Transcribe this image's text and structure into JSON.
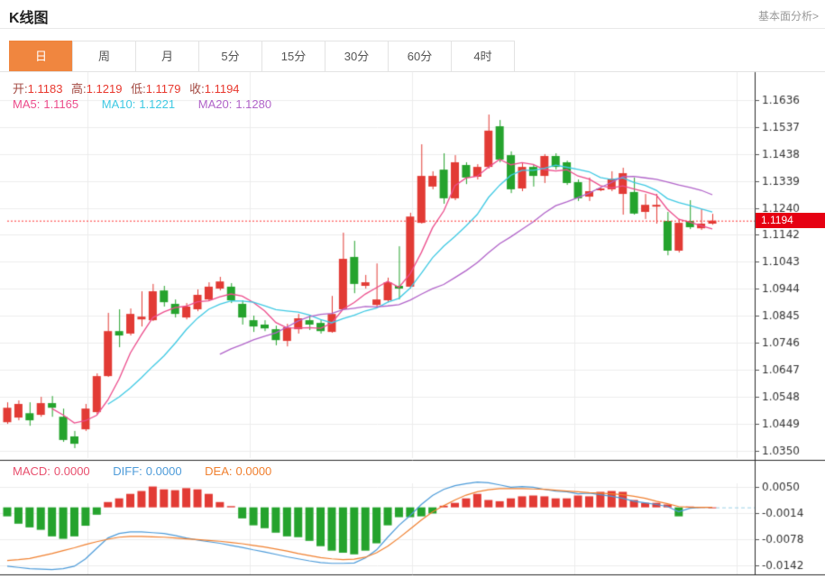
{
  "header": {
    "title": "K线图",
    "link_label": "基本面分析>"
  },
  "tabs": {
    "items": [
      "日",
      "周",
      "月",
      "5分",
      "15分",
      "30分",
      "60分",
      "4时"
    ],
    "active": "日"
  },
  "info_bar": {
    "open_label": "开:",
    "open": "1.1183",
    "high_label": "高:",
    "high": "1.1219",
    "low_label": "低:",
    "low": "1.1179",
    "close_label": "收:",
    "close": "1.1194",
    "ma5_label": "MA5:",
    "ma5": "1.1165",
    "ma10_label": "MA10:",
    "ma10": "1.1221",
    "ma20_label": "MA20:",
    "ma20": "1.1280"
  },
  "macd_bar": {
    "macd_label": "MACD:",
    "macd": "0.0000",
    "diff_label": "DIFF:",
    "diff": "0.0000",
    "dea_label": "DEA:",
    "dea": "0.0000"
  },
  "colors": {
    "up": "#e23b35",
    "down": "#25a32d",
    "ma5": "#ec4d8c",
    "ma10": "#3fc9e3",
    "ma20": "#b164c9",
    "diff": "#4d9bd9",
    "dea": "#f08030",
    "macd_label": "#e8506e",
    "ohlc_label": "#a34a42",
    "ohlc_value": "#e8392f",
    "price_line": "#ff3333",
    "badge_bg": "#e60012",
    "tab_active": "#f0863f",
    "grid": "#ececec",
    "axis": "#333333",
    "tick_text": "#333333",
    "zero_dash": "#9fd2e8"
  },
  "chart_data": {
    "type": "candlestick",
    "title": "K线图",
    "y_axis_ticks": [
      1.1636,
      1.1537,
      1.1438,
      1.1339,
      1.124,
      1.1142,
      1.1043,
      1.0944,
      1.0845,
      1.0746,
      1.0647,
      1.0548,
      1.0449,
      1.035
    ],
    "price_line": 1.1194,
    "price_badge": "1.1194",
    "ma_periods": [
      5,
      10,
      20
    ],
    "candles": [
      [
        1.0455,
        1.0528,
        1.0449,
        1.0508
      ],
      [
        1.0472,
        1.0535,
        1.0462,
        1.0522
      ],
      [
        1.0488,
        1.0528,
        1.0442,
        1.0462
      ],
      [
        1.0482,
        1.0548,
        1.0475,
        1.0525
      ],
      [
        1.0525,
        1.0551,
        1.0475,
        1.0508
      ],
      [
        1.0475,
        1.0505,
        1.0383,
        1.039
      ],
      [
        1.0403,
        1.0423,
        1.036,
        1.0376
      ],
      [
        1.0429,
        1.0522,
        1.0423,
        1.0505
      ],
      [
        1.0492,
        1.0634,
        1.0485,
        1.0624
      ],
      [
        1.0624,
        1.0856,
        1.0621,
        1.0789
      ],
      [
        1.0789,
        1.0869,
        1.073,
        1.0773
      ],
      [
        1.078,
        1.0872,
        1.0773,
        1.0852
      ],
      [
        1.0832,
        1.0935,
        1.0806,
        1.0842
      ],
      [
        1.0829,
        1.0962,
        1.0826,
        1.0935
      ],
      [
        1.0938,
        1.0955,
        1.0879,
        1.0895
      ],
      [
        1.0889,
        1.0905,
        1.0839,
        1.0852
      ],
      [
        1.0839,
        1.0892,
        1.0832,
        1.0879
      ],
      [
        1.0869,
        1.0942,
        1.0862,
        1.0922
      ],
      [
        1.0905,
        1.0968,
        1.0899,
        1.0952
      ],
      [
        1.0945,
        1.0988,
        1.0938,
        1.0971
      ],
      [
        1.0952,
        1.0965,
        1.0892,
        1.0902
      ],
      [
        1.0889,
        1.0902,
        1.0813,
        1.0839
      ],
      [
        1.0829,
        1.0846,
        1.0786,
        1.0806
      ],
      [
        1.0813,
        1.0829,
        1.0789,
        1.0799
      ],
      [
        1.0796,
        1.0809,
        1.0737,
        1.0756
      ],
      [
        1.0753,
        1.0816,
        1.0733,
        1.0803
      ],
      [
        1.0796,
        1.0852,
        1.078,
        1.0836
      ],
      [
        1.0829,
        1.0849,
        1.0793,
        1.0813
      ],
      [
        1.0819,
        1.0832,
        1.078,
        1.0789
      ],
      [
        1.0786,
        1.0918,
        1.0783,
        1.0852
      ],
      [
        1.0869,
        1.115,
        1.0866,
        1.1054
      ],
      [
        1.1061,
        1.112,
        1.0928,
        1.0962
      ],
      [
        1.0955,
        1.0995,
        1.0945,
        1.0968
      ],
      [
        1.0885,
        1.1037,
        1.0879,
        1.0905
      ],
      [
        1.0902,
        1.0985,
        1.0895,
        1.0968
      ],
      [
        1.0955,
        1.11,
        1.0905,
        1.0945
      ],
      [
        1.0952,
        1.1223,
        1.0945,
        1.1209
      ],
      [
        1.1186,
        1.1474,
        1.1183,
        1.1358
      ],
      [
        1.1319,
        1.1375,
        1.1309,
        1.1358
      ],
      [
        1.1381,
        1.1441,
        1.1256,
        1.1276
      ],
      [
        1.1276,
        1.1434,
        1.1269,
        1.1408
      ],
      [
        1.1398,
        1.1408,
        1.1328,
        1.1352
      ],
      [
        1.1355,
        1.1401,
        1.1345,
        1.1391
      ],
      [
        1.1391,
        1.1583,
        1.1385,
        1.1524
      ],
      [
        1.154,
        1.1563,
        1.1408,
        1.1418
      ],
      [
        1.1434,
        1.1448,
        1.1295,
        1.1309
      ],
      [
        1.1312,
        1.1405,
        1.1302,
        1.1391
      ],
      [
        1.1391,
        1.1398,
        1.1319,
        1.1358
      ],
      [
        1.1358,
        1.1438,
        1.1332,
        1.1431
      ],
      [
        1.1431,
        1.1441,
        1.1381,
        1.1391
      ],
      [
        1.1408,
        1.1414,
        1.1325,
        1.1332
      ],
      [
        1.1335,
        1.1345,
        1.1266,
        1.1276
      ],
      [
        1.1282,
        1.1352,
        1.1266,
        1.1302
      ],
      [
        1.1306,
        1.1315,
        1.1302,
        1.1312
      ],
      [
        1.1309,
        1.1375,
        1.1302,
        1.1348
      ],
      [
        1.1292,
        1.1388,
        1.1216,
        1.1368
      ],
      [
        1.1299,
        1.1352,
        1.1216,
        1.122
      ],
      [
        1.1226,
        1.1292,
        1.12,
        1.1252
      ],
      [
        1.1246,
        1.1292,
        1.1183,
        1.1252
      ],
      [
        1.1193,
        1.1226,
        1.1067,
        1.1084
      ],
      [
        1.1084,
        1.12,
        1.1077,
        1.1186
      ],
      [
        1.1193,
        1.1269,
        1.1163,
        1.117
      ],
      [
        1.1166,
        1.1236,
        1.116,
        1.1183
      ],
      [
        1.1183,
        1.1219,
        1.1179,
        1.1194
      ]
    ],
    "macd": {
      "y_ticks": [
        0.005,
        -0.0014,
        -0.0078,
        -0.0142
      ],
      "histogram": [
        -0.0022,
        -0.004,
        -0.0049,
        -0.0055,
        -0.0071,
        -0.0077,
        -0.0071,
        -0.0045,
        -0.0018,
        0.0013,
        0.0022,
        0.0033,
        0.004,
        0.0051,
        0.0044,
        0.0042,
        0.0047,
        0.0044,
        0.0033,
        0.0013,
        0.0003,
        -0.0027,
        -0.0044,
        -0.0051,
        -0.0062,
        -0.0071,
        -0.0073,
        -0.0082,
        -0.0095,
        -0.0106,
        -0.0111,
        -0.0115,
        -0.0106,
        -0.0088,
        -0.0044,
        -0.0024,
        -0.0024,
        -0.0022,
        -0.0015,
        0.0004,
        0.0011,
        0.0022,
        0.0033,
        0.0018,
        0.0015,
        0.0022,
        0.0027,
        0.0029,
        0.0027,
        0.0022,
        0.0022,
        0.0029,
        0.0027,
        0.0038,
        0.004,
        0.0038,
        0.0018,
        0.0011,
        0.0011,
        0.0007,
        -0.0022,
        0.0002,
        0.0001,
        0.0
      ],
      "diff": [
        -0.0144,
        -0.0147,
        -0.015,
        -0.0151,
        -0.0152,
        -0.015,
        -0.0144,
        -0.0126,
        -0.01,
        -0.0075,
        -0.0064,
        -0.006,
        -0.006,
        -0.0062,
        -0.0064,
        -0.0069,
        -0.0075,
        -0.008,
        -0.0084,
        -0.0088,
        -0.0093,
        -0.0098,
        -0.0104,
        -0.0109,
        -0.0115,
        -0.0121,
        -0.0126,
        -0.0131,
        -0.0135,
        -0.0137,
        -0.0137,
        -0.0136,
        -0.0124,
        -0.0104,
        -0.0073,
        -0.0044,
        -0.002,
        0.0007,
        0.0029,
        0.0044,
        0.0053,
        0.0058,
        0.0062,
        0.006,
        0.0055,
        0.0049,
        0.0051,
        0.0049,
        0.0044,
        0.004,
        0.0038,
        0.0033,
        0.0035,
        0.0031,
        0.0027,
        0.0022,
        0.0015,
        0.0011,
        0.0007,
        0.0002,
        -0.0011,
        -0.0002,
        0.0,
        0.0
      ],
      "dea": [
        -0.013,
        -0.0128,
        -0.0125,
        -0.0119,
        -0.0113,
        -0.0106,
        -0.0099,
        -0.0091,
        -0.0084,
        -0.0078,
        -0.0073,
        -0.0071,
        -0.0071,
        -0.0072,
        -0.0073,
        -0.0075,
        -0.0077,
        -0.0079,
        -0.0081,
        -0.0083,
        -0.0086,
        -0.0089,
        -0.0093,
        -0.0097,
        -0.0102,
        -0.0107,
        -0.0113,
        -0.0118,
        -0.0123,
        -0.0126,
        -0.0128,
        -0.0127,
        -0.0122,
        -0.0111,
        -0.0095,
        -0.0075,
        -0.0053,
        -0.0031,
        -0.0011,
        0.0004,
        0.0018,
        0.003,
        0.0038,
        0.0043,
        0.0046,
        0.0046,
        0.0046,
        0.0045,
        0.0044,
        0.0042,
        0.004,
        0.0038,
        0.0036,
        0.0035,
        0.0033,
        0.0031,
        0.0027,
        0.0022,
        0.0015,
        0.0009,
        0.0002,
        0.0,
        0.0,
        0.0
      ]
    }
  }
}
